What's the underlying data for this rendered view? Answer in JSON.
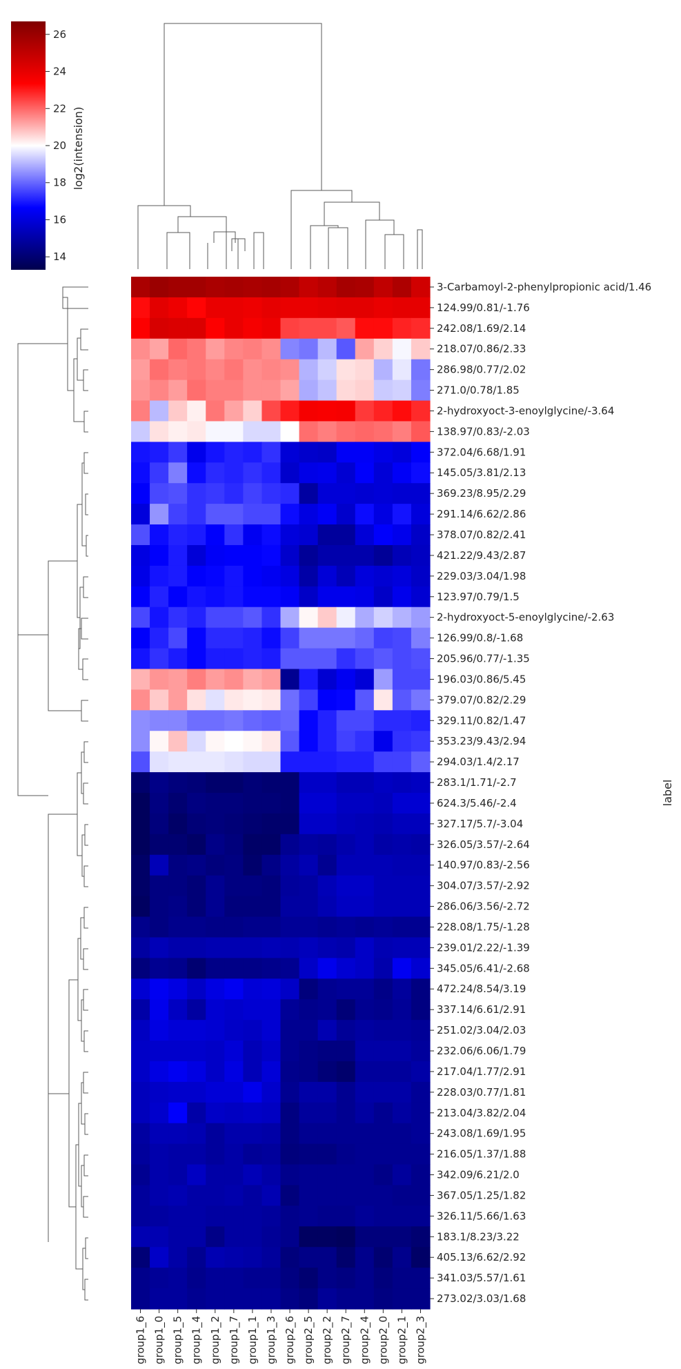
{
  "chart_data": {
    "type": "heatmap",
    "title": "",
    "colorbar": {
      "label": "log2(intension)",
      "ticks": [
        14,
        16,
        18,
        20,
        22,
        24,
        26
      ],
      "range": [
        13.3,
        26.7
      ],
      "colormap": "seismic",
      "colors": [
        "#00004c",
        "#0000ff",
        "#ffffff",
        "#ff0000",
        "#800000"
      ]
    },
    "ylabel": "label",
    "xlabel": "",
    "columns": [
      "group1_6",
      "group1_0",
      "group1_5",
      "group1_4",
      "group1_2",
      "group1_7",
      "group1_1",
      "group1_3",
      "group2_6",
      "group2_5",
      "group2_2",
      "group2_7",
      "group2_4",
      "group2_0",
      "group2_1",
      "group2_3"
    ],
    "rows": [
      "3-Carbamoyl-2-phenylpropionic acid/1.46",
      "124.99/0.81/-1.76",
      "242.08/1.69/2.14",
      "218.07/0.86/2.33",
      "286.98/0.77/2.02",
      "271.0/0.78/1.85",
      "2-hydroxyoct-3-enoylglycine/-3.64",
      "138.97/0.83/-2.03",
      "372.04/6.68/1.91",
      "145.05/3.81/2.13",
      "369.23/8.95/2.29",
      "291.14/6.62/2.86",
      "378.07/0.82/2.41",
      "421.22/9.43/2.87",
      "229.03/3.04/1.98",
      "123.97/0.79/1.5",
      "2-hydroxyoct-5-enoylglycine/-2.63",
      "126.99/0.8/-1.68",
      "205.96/0.77/-1.35",
      "196.03/0.86/5.45",
      "379.07/0.82/2.29",
      "329.11/0.82/1.47",
      "353.23/9.43/2.94",
      "294.03/1.4/2.17",
      "283.1/1.71/-2.7",
      "624.3/5.46/-2.4",
      "327.17/5.7/-3.04",
      "326.05/3.57/-2.64",
      "140.97/0.83/-2.56",
      "304.07/3.57/-2.92",
      "286.06/3.56/-2.72",
      "228.08/1.75/-1.28",
      "239.01/2.22/-1.39",
      "345.05/6.41/-2.68",
      "472.24/8.54/3.19",
      "337.14/6.61/2.91",
      "251.02/3.04/2.03",
      "232.06/6.06/1.79",
      "217.04/1.77/2.91",
      "228.03/0.77/1.81",
      "213.04/3.82/2.04",
      "243.08/1.69/1.95",
      "216.05/1.37/1.88",
      "342.09/6.21/2.0",
      "367.05/1.25/1.82",
      "326.11/5.66/1.63",
      "183.1/8.23/3.22",
      "405.13/6.62/2.92",
      "341.03/5.57/1.61",
      "273.02/3.03/1.68"
    ],
    "values": [
      [
        25.6,
        26.0,
        25.8,
        25.8,
        25.6,
        25.7,
        25.6,
        25.7,
        25.5,
        24.9,
        25.2,
        25.7,
        25.6,
        25.0,
        25.5,
        24.6
      ],
      [
        23.2,
        24.1,
        23.8,
        23.3,
        23.9,
        23.9,
        23.8,
        24.0,
        23.9,
        23.9,
        24.0,
        24.1,
        24.1,
        23.9,
        24.0,
        24.0
      ],
      [
        23.4,
        24.4,
        24.3,
        24.3,
        23.4,
        23.9,
        23.6,
        23.8,
        22.5,
        22.4,
        22.4,
        22.2,
        23.2,
        23.2,
        22.9,
        22.8
      ],
      [
        21.5,
        21.2,
        22.0,
        21.8,
        21.3,
        21.6,
        21.7,
        21.5,
        18.4,
        18.2,
        19.1,
        17.8,
        21.2,
        20.6,
        19.9,
        20.7
      ],
      [
        21.3,
        21.9,
        21.7,
        21.8,
        21.6,
        21.8,
        21.5,
        21.6,
        21.5,
        19.0,
        19.4,
        20.4,
        20.5,
        19.0,
        19.7,
        18.2
      ],
      [
        21.4,
        21.6,
        21.3,
        21.9,
        21.7,
        21.7,
        21.5,
        21.5,
        21.2,
        18.9,
        19.2,
        20.5,
        20.6,
        19.3,
        19.4,
        18.3
      ],
      [
        21.7,
        19.1,
        20.7,
        20.2,
        21.8,
        21.2,
        20.6,
        22.4,
        23.0,
        23.6,
        23.5,
        23.6,
        22.6,
        22.9,
        23.2,
        22.8
      ],
      [
        19.3,
        20.4,
        20.2,
        20.3,
        19.9,
        19.9,
        19.5,
        19.5,
        20.0,
        21.9,
        21.7,
        21.9,
        22.0,
        21.9,
        21.7,
        22.2
      ],
      [
        16.9,
        17.0,
        17.4,
        16.3,
        16.9,
        17.1,
        17.0,
        17.3,
        15.9,
        15.7,
        15.6,
        16.5,
        16.5,
        16.2,
        16.0,
        16.6
      ],
      [
        16.8,
        17.4,
        18.3,
        16.8,
        17.2,
        17.1,
        17.3,
        17.1,
        15.7,
        16.2,
        16.3,
        15.8,
        16.6,
        15.9,
        16.5,
        16.8
      ],
      [
        16.6,
        17.6,
        17.7,
        17.3,
        17.4,
        17.2,
        17.5,
        17.3,
        17.2,
        14.9,
        15.9,
        15.9,
        15.8,
        15.9,
        15.8,
        15.8
      ],
      [
        16.0,
        18.6,
        17.5,
        17.3,
        17.8,
        17.8,
        17.6,
        17.6,
        16.8,
        16.1,
        16.5,
        15.7,
        16.8,
        16.1,
        16.9,
        16.0
      ],
      [
        17.7,
        16.8,
        17.1,
        17.0,
        16.6,
        17.3,
        16.4,
        16.8,
        16.0,
        15.8,
        14.8,
        14.8,
        15.9,
        16.6,
        16.3,
        15.6
      ],
      [
        16.1,
        16.6,
        17.0,
        15.9,
        16.5,
        16.6,
        16.6,
        16.7,
        15.7,
        14.7,
        15.1,
        15.1,
        15.1,
        14.7,
        15.3,
        15.5
      ],
      [
        16.2,
        16.9,
        17.0,
        16.6,
        16.7,
        16.9,
        16.6,
        16.4,
        16.1,
        15.0,
        15.9,
        15.3,
        16.0,
        15.8,
        16.0,
        15.6
      ],
      [
        16.6,
        17.1,
        16.6,
        16.9,
        16.8,
        16.9,
        16.7,
        16.7,
        16.5,
        15.6,
        16.3,
        16.3,
        16.2,
        15.6,
        16.3,
        15.8
      ],
      [
        17.6,
        16.9,
        17.3,
        17.1,
        17.6,
        17.6,
        17.8,
        17.3,
        18.9,
        20.1,
        20.7,
        19.8,
        18.9,
        19.4,
        19.0,
        18.7
      ],
      [
        16.6,
        17.1,
        17.6,
        16.7,
        17.2,
        17.2,
        17.1,
        16.8,
        17.5,
        18.2,
        18.2,
        18.2,
        18.0,
        17.5,
        17.6,
        18.3
      ],
      [
        16.9,
        17.3,
        17.0,
        16.7,
        17.0,
        17.0,
        17.1,
        17.0,
        17.8,
        17.8,
        17.8,
        17.3,
        17.6,
        17.8,
        17.6,
        17.7
      ],
      [
        21.0,
        21.4,
        21.3,
        21.7,
        21.3,
        21.5,
        21.1,
        21.3,
        14.6,
        17.0,
        15.8,
        16.4,
        15.9,
        18.7,
        17.6,
        17.6
      ],
      [
        21.5,
        20.7,
        21.3,
        20.4,
        19.6,
        20.3,
        20.2,
        20.3,
        18.1,
        17.5,
        16.6,
        16.7,
        17.8,
        20.3,
        17.8,
        18.2
      ],
      [
        18.5,
        18.4,
        18.4,
        18.1,
        18.1,
        18.2,
        18.0,
        17.9,
        18.0,
        16.7,
        17.1,
        17.6,
        17.6,
        17.2,
        17.2,
        17.1
      ],
      [
        18.5,
        20.1,
        20.8,
        19.5,
        20.1,
        20.0,
        20.1,
        20.3,
        17.8,
        16.7,
        17.1,
        17.5,
        17.3,
        16.3,
        17.3,
        17.4
      ],
      [
        17.7,
        19.6,
        19.7,
        19.7,
        19.7,
        19.6,
        19.5,
        19.5,
        17.0,
        17.0,
        17.0,
        17.1,
        17.1,
        17.5,
        17.5,
        17.9
      ],
      [
        13.9,
        14.4,
        14.2,
        14.1,
        13.9,
        13.9,
        14.1,
        14.0,
        14.0,
        15.6,
        15.6,
        15.3,
        15.3,
        15.5,
        15.4,
        15.5
      ],
      [
        13.6,
        14.3,
        14.0,
        14.3,
        14.2,
        14.2,
        14.1,
        14.1,
        14.0,
        15.8,
        15.8,
        15.5,
        15.5,
        15.4,
        15.8,
        15.8
      ],
      [
        13.6,
        14.2,
        13.8,
        14.1,
        14.2,
        14.1,
        14.0,
        13.9,
        13.9,
        15.6,
        15.6,
        15.4,
        15.3,
        15.2,
        15.4,
        15.4
      ],
      [
        13.6,
        14.0,
        14.0,
        13.8,
        14.4,
        14.2,
        13.8,
        13.8,
        14.6,
        14.9,
        14.8,
        15.1,
        15.3,
        15.0,
        15.1,
        15.0
      ],
      [
        13.8,
        15.3,
        14.3,
        14.4,
        14.2,
        14.3,
        13.9,
        14.4,
        14.9,
        15.2,
        14.6,
        15.3,
        15.3,
        15.3,
        15.2,
        15.2
      ],
      [
        13.8,
        14.3,
        14.3,
        14.1,
        14.6,
        14.3,
        14.3,
        14.2,
        14.8,
        14.9,
        15.3,
        15.6,
        15.6,
        15.3,
        15.3,
        15.3
      ],
      [
        13.7,
        14.3,
        14.4,
        14.1,
        14.6,
        14.2,
        14.2,
        14.2,
        14.9,
        14.9,
        15.2,
        15.5,
        15.5,
        15.3,
        15.3,
        15.3
      ],
      [
        14.5,
        14.3,
        14.5,
        14.5,
        14.4,
        14.4,
        14.5,
        14.5,
        14.7,
        14.7,
        14.6,
        14.7,
        14.6,
        14.7,
        14.6,
        14.6
      ],
      [
        14.9,
        15.3,
        15.1,
        15.1,
        15.2,
        15.2,
        15.2,
        15.3,
        15.2,
        15.4,
        15.2,
        15.1,
        15.6,
        15.2,
        15.3,
        15.3
      ],
      [
        14.2,
        14.6,
        14.5,
        14.0,
        14.4,
        14.4,
        14.4,
        14.5,
        14.6,
        15.6,
        16.3,
        15.8,
        15.6,
        15.1,
        16.4,
        15.8
      ],
      [
        15.8,
        16.4,
        16.1,
        15.6,
        16.1,
        16.4,
        15.9,
        16.0,
        15.6,
        14.2,
        14.6,
        14.7,
        14.7,
        14.4,
        14.8,
        14.3
      ],
      [
        15.0,
        16.3,
        15.5,
        14.9,
        15.8,
        15.7,
        15.8,
        15.8,
        14.7,
        14.5,
        14.6,
        14.1,
        14.6,
        14.5,
        14.7,
        14.3
      ],
      [
        15.5,
        16.1,
        15.9,
        15.9,
        15.8,
        15.6,
        15.5,
        15.8,
        14.6,
        14.6,
        15.2,
        14.7,
        14.9,
        14.8,
        14.8,
        14.7
      ],
      [
        15.6,
        15.7,
        15.7,
        15.7,
        15.6,
        15.9,
        15.3,
        15.6,
        14.6,
        14.4,
        14.3,
        14.3,
        15.0,
        15.0,
        15.0,
        14.8
      ],
      [
        15.6,
        16.1,
        16.4,
        16.1,
        15.6,
        16.1,
        15.3,
        15.9,
        14.5,
        14.4,
        14.1,
        13.9,
        14.8,
        14.8,
        14.8,
        15.0
      ],
      [
        15.4,
        15.6,
        15.7,
        15.7,
        15.9,
        15.9,
        16.3,
        15.7,
        14.6,
        15.0,
        15.0,
        14.6,
        15.0,
        15.0,
        15.0,
        14.7
      ],
      [
        15.4,
        15.7,
        16.6,
        15.0,
        15.6,
        15.5,
        15.6,
        15.5,
        14.3,
        14.8,
        14.8,
        14.6,
        14.9,
        14.6,
        14.9,
        14.7
      ],
      [
        14.9,
        15.3,
        15.3,
        15.2,
        14.8,
        15.1,
        15.1,
        15.0,
        14.3,
        14.6,
        14.6,
        14.6,
        14.6,
        14.6,
        14.6,
        14.7
      ],
      [
        14.8,
        15.1,
        15.0,
        15.0,
        14.8,
        15.0,
        14.7,
        14.8,
        14.2,
        14.3,
        14.3,
        14.5,
        14.6,
        14.6,
        14.6,
        14.6
      ],
      [
        14.6,
        15.1,
        15.0,
        15.5,
        15.0,
        15.0,
        15.3,
        15.0,
        14.5,
        14.6,
        14.6,
        14.6,
        14.6,
        14.4,
        14.8,
        14.5
      ],
      [
        14.8,
        15.1,
        15.2,
        15.0,
        15.0,
        15.1,
        14.9,
        15.2,
        14.2,
        14.6,
        14.6,
        14.6,
        14.6,
        14.6,
        14.5,
        14.5
      ],
      [
        14.8,
        14.9,
        15.0,
        15.0,
        14.9,
        14.9,
        14.9,
        14.8,
        14.5,
        14.6,
        14.5,
        14.5,
        14.7,
        14.6,
        14.6,
        14.6
      ],
      [
        15.2,
        15.2,
        15.0,
        15.0,
        14.4,
        14.9,
        14.9,
        14.7,
        14.5,
        13.7,
        13.7,
        13.6,
        14.2,
        14.2,
        14.2,
        14.0
      ],
      [
        14.1,
        15.6,
        15.0,
        14.6,
        15.2,
        15.1,
        15.0,
        14.8,
        14.2,
        14.4,
        14.4,
        13.9,
        14.5,
        14.0,
        14.5,
        13.8
      ],
      [
        14.5,
        14.7,
        14.8,
        14.5,
        14.7,
        14.7,
        14.6,
        14.6,
        14.3,
        14.0,
        14.4,
        14.3,
        14.5,
        14.2,
        14.4,
        14.4
      ],
      [
        14.5,
        14.8,
        14.8,
        14.6,
        14.7,
        14.7,
        14.7,
        14.7,
        14.4,
        14.2,
        14.7,
        14.5,
        14.5,
        14.3,
        14.4,
        14.4
      ]
    ]
  }
}
